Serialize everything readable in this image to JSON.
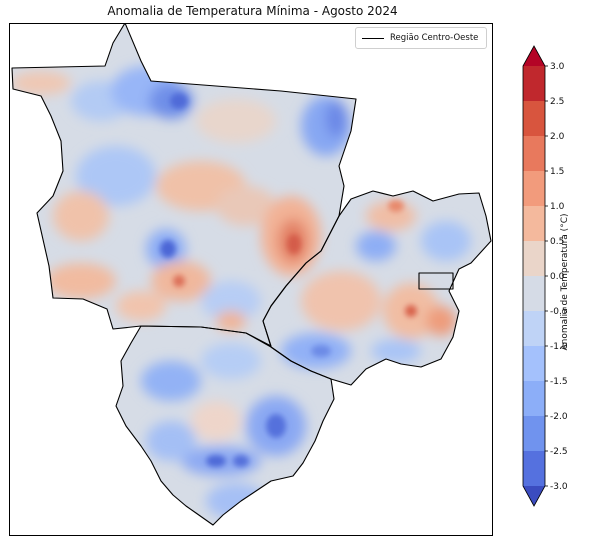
{
  "title": "Anomalia de Temperatura Mínima - Agosto 2024",
  "legend": {
    "label": "Região Centro-Oeste",
    "line_color": "#000000"
  },
  "colorbar": {
    "label": "Anomalia de Temperatura (°C)",
    "ticks": [
      "3.0",
      "2.5",
      "2.0",
      "1.5",
      "1.0",
      "0.5",
      "0.0",
      "-0.5",
      "-1.0",
      "-1.5",
      "-2.0",
      "-2.5",
      "-3.0"
    ],
    "colors_top_to_bottom": [
      "#c0282d",
      "#d8553e",
      "#e8795d",
      "#f29b7c",
      "#f4b99d",
      "#ead5c9",
      "#d5dbe6",
      "#bfd3f6",
      "#a4c1fc",
      "#8caef8",
      "#7093ee",
      "#5571df"
    ],
    "extend_top_color": "#b40426",
    "extend_bottom_color": "#3b4cc0"
  },
  "chart_data": {
    "type": "heatmap",
    "variable": "Anomalia de Temperatura Mínima",
    "units": "°C",
    "period": "Agosto 2024",
    "color_range": [
      -3.0,
      3.0
    ],
    "colormap": "coolwarm",
    "region": "Região Centro-Oeste"
  }
}
